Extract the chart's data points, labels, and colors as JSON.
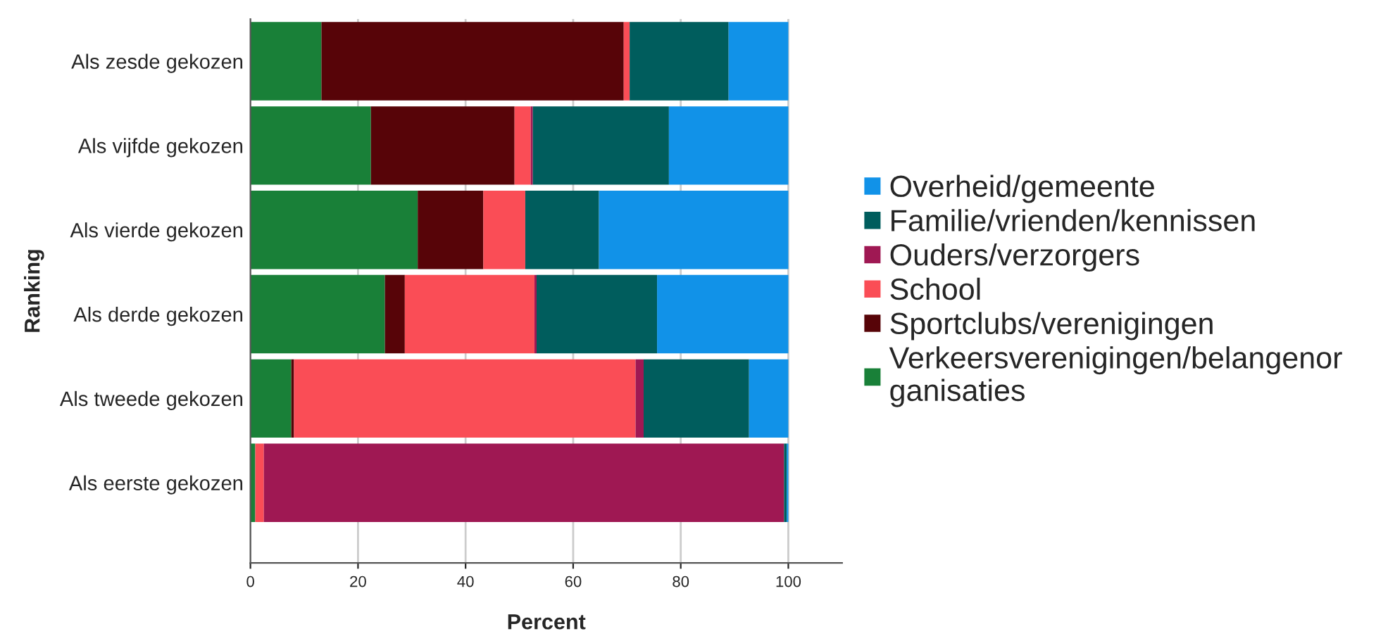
{
  "chart_data": {
    "type": "bar",
    "orientation": "horizontal",
    "stacked": true,
    "xlabel": "Percent",
    "ylabel": "Ranking",
    "categories": [
      "Als zesde gekozen",
      "Als vijfde gekozen",
      "Als vierde gekozen",
      "Als derde gekozen",
      "Als tweede gekozen",
      "Als eerste gekozen"
    ],
    "series": [
      {
        "name": "Verkeersverenigingen/belangenor\nganisaties",
        "color": "#198038",
        "values": [
          13.2,
          22.4,
          31.1,
          25.0,
          7.6,
          0.9
        ]
      },
      {
        "name": "Sportclubs/verenigingen",
        "color": "#570408",
        "values": [
          56.2,
          26.7,
          12.2,
          3.7,
          0.5,
          0
        ]
      },
      {
        "name": "School",
        "color": "#fa4d56",
        "values": [
          1.1,
          3.0,
          7.8,
          24.1,
          63.5,
          1.6
        ]
      },
      {
        "name": "Ouders/verzorgers",
        "color": "#9f1853",
        "values": [
          0,
          0.4,
          0,
          0.4,
          1.5,
          96.7
        ]
      },
      {
        "name": "Familie/vrienden/kennissen",
        "color": "#005d5d",
        "values": [
          18.4,
          25.3,
          13.7,
          22.4,
          19.6,
          0.5
        ]
      },
      {
        "name": "Overheid/gemeente",
        "color": "#1192e8",
        "values": [
          11.1,
          22.2,
          35.2,
          24.4,
          7.3,
          0.3
        ]
      }
    ],
    "xlim": [
      0,
      110
    ],
    "xticks": [
      0,
      20,
      40,
      60,
      80,
      100
    ],
    "grid": "x",
    "legend": "right"
  }
}
